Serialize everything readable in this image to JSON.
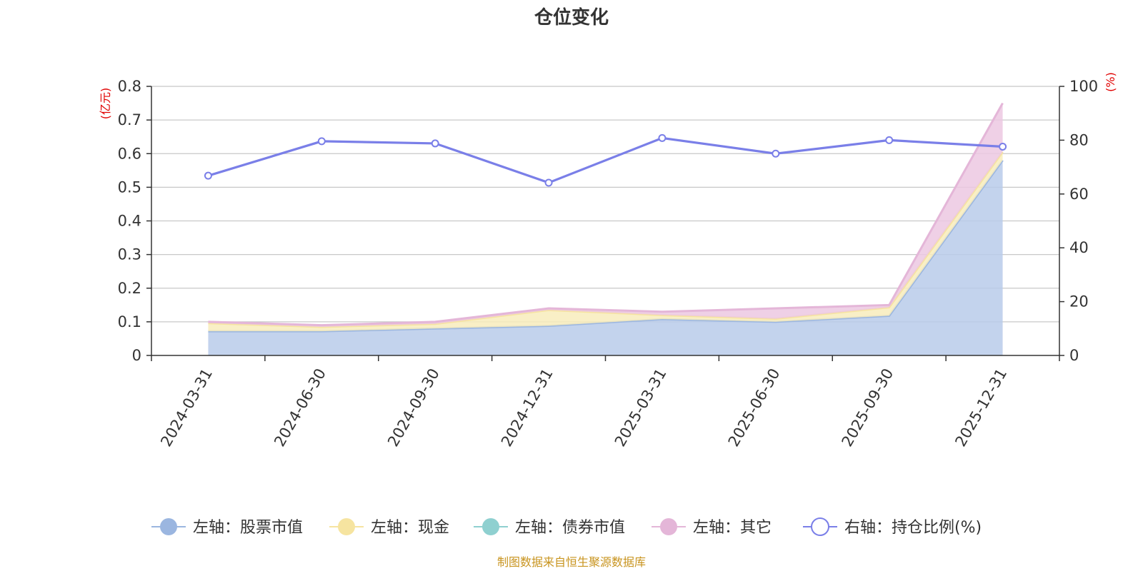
{
  "chart_data": {
    "type": "area",
    "title": "仓位变化",
    "categories": [
      "2024-03-31",
      "2024-06-30",
      "2024-09-30",
      "2024-12-31",
      "2025-03-31",
      "2025-06-30",
      "2025-09-30",
      "2025-12-31"
    ],
    "left_axis": {
      "unit": "(亿元)",
      "ylim": [
        0,
        0.8
      ],
      "ticks": [
        "0",
        "0.1",
        "0.2",
        "0.3",
        "0.4",
        "0.5",
        "0.6",
        "0.7",
        "0.8"
      ]
    },
    "right_axis": {
      "unit": "(%)",
      "ylim": [
        0,
        100
      ],
      "ticks": [
        "0",
        "20",
        "40",
        "60",
        "80",
        "100"
      ]
    },
    "series": [
      {
        "name": "左轴：股票市值",
        "axis": "left",
        "kind": "stacked-area",
        "color": "#9bb6e0",
        "fill": "#b8cbea",
        "values": [
          0.072,
          0.072,
          0.08,
          0.088,
          0.108,
          0.1,
          0.118,
          0.58
        ]
      },
      {
        "name": "左轴：现金",
        "axis": "left",
        "kind": "stacked-area",
        "color": "#f6e4a0",
        "fill": "#f8ecbc",
        "values": [
          0.024,
          0.013,
          0.014,
          0.047,
          0.012,
          0.009,
          0.025,
          0.025
        ]
      },
      {
        "name": "左轴：债券市值",
        "axis": "left",
        "kind": "stacked-area",
        "color": "#8fd0d0",
        "fill": "#bfe5e5",
        "values": [
          0,
          0,
          0,
          0,
          0,
          0,
          0,
          0
        ]
      },
      {
        "name": "左轴：其它",
        "axis": "left",
        "kind": "stacked-area",
        "color": "#e4b6d8",
        "fill": "#ecc8e2",
        "values": [
          0.004,
          0.005,
          0.006,
          0.005,
          0.01,
          0.031,
          0.007,
          0.145
        ]
      },
      {
        "name": "右轴：持仓比例(%)",
        "axis": "right",
        "kind": "line",
        "color": "#7a7fe8",
        "values": [
          66.8,
          79.6,
          78.8,
          64.2,
          80.8,
          75.0,
          80.0,
          77.6
        ]
      }
    ],
    "grid": true,
    "legend_position": "bottom"
  },
  "source_note": "制图数据来自恒生聚源数据库"
}
